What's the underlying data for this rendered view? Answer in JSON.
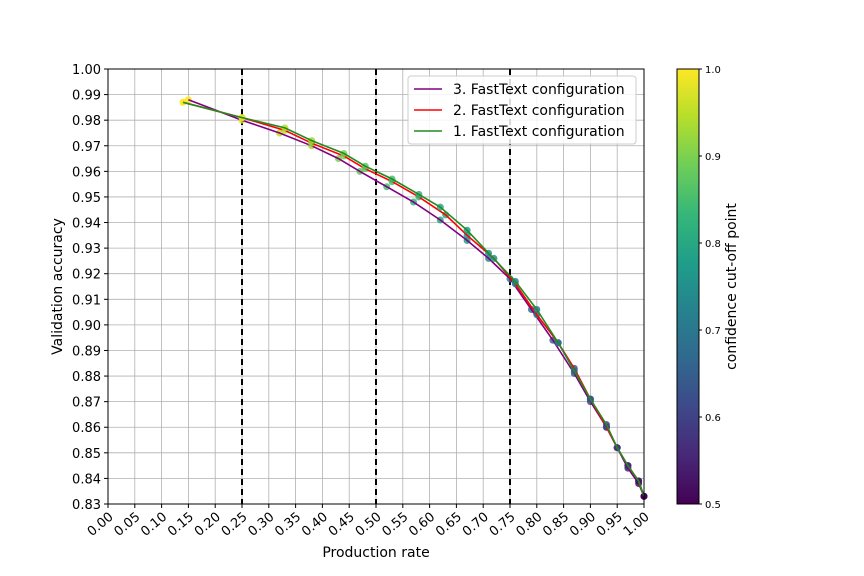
{
  "chart_data": {
    "type": "line",
    "xlabel": "Production rate",
    "ylabel": "Validation accuracy",
    "xlim": [
      0.0,
      1.0
    ],
    "ylim": [
      0.83,
      1.0
    ],
    "xticks": [
      "0.00",
      "0.05",
      "0.10",
      "0.15",
      "0.20",
      "0.25",
      "0.30",
      "0.35",
      "0.40",
      "0.45",
      "0.50",
      "0.55",
      "0.60",
      "0.65",
      "0.70",
      "0.75",
      "0.80",
      "0.85",
      "0.90",
      "0.95",
      "1.00"
    ],
    "yticks": [
      "0.83",
      "0.84",
      "0.85",
      "0.86",
      "0.87",
      "0.88",
      "0.89",
      "0.90",
      "0.91",
      "0.92",
      "0.93",
      "0.94",
      "0.95",
      "0.96",
      "0.97",
      "0.98",
      "0.99",
      "1.00"
    ],
    "grid": true,
    "legend_position": "top-right",
    "vertical_lines": [
      0.25,
      0.5,
      0.75
    ],
    "colorbar": {
      "label": "confidence cut-off point",
      "min": 0.5,
      "max": 1.0,
      "ticks": [
        "0.5",
        "0.6",
        "0.7",
        "0.8",
        "0.9",
        "1.0"
      ],
      "colormap": [
        "#440154",
        "#482878",
        "#3e4989",
        "#31688e",
        "#26828e",
        "#1f9e89",
        "#35b779",
        "#6ece58",
        "#b5de2b",
        "#fde725"
      ]
    },
    "series": [
      {
        "name": "3. FastText configuration",
        "color": "#800080",
        "x": [
          0.15,
          0.25,
          0.32,
          0.38,
          0.43,
          0.47,
          0.52,
          0.57,
          0.62,
          0.67,
          0.71,
          0.75,
          0.79,
          0.83,
          0.87,
          0.9,
          0.93,
          0.95,
          0.97,
          0.99,
          1.0
        ],
        "y": [
          0.988,
          0.98,
          0.975,
          0.97,
          0.965,
          0.96,
          0.954,
          0.948,
          0.941,
          0.933,
          0.926,
          0.918,
          0.906,
          0.894,
          0.881,
          0.87,
          0.86,
          0.852,
          0.844,
          0.838,
          0.833
        ]
      },
      {
        "name": "2. FastText configuration",
        "color": "#ff0000",
        "x": [
          0.14,
          0.25,
          0.33,
          0.38,
          0.44,
          0.48,
          0.53,
          0.58,
          0.63,
          0.67,
          0.72,
          0.76,
          0.8,
          0.84,
          0.87,
          0.9,
          0.93,
          0.95,
          0.97,
          0.99,
          1.0
        ],
        "y": [
          0.987,
          0.981,
          0.976,
          0.971,
          0.966,
          0.961,
          0.956,
          0.95,
          0.943,
          0.935,
          0.926,
          0.916,
          0.904,
          0.893,
          0.883,
          0.871,
          0.86,
          0.852,
          0.845,
          0.839,
          0.833
        ]
      },
      {
        "name": "1. FastText configuration",
        "color": "#228b22",
        "x": [
          0.14,
          0.25,
          0.33,
          0.38,
          0.44,
          0.48,
          0.53,
          0.58,
          0.62,
          0.67,
          0.71,
          0.76,
          0.8,
          0.84,
          0.87,
          0.9,
          0.93,
          0.95,
          0.97,
          0.99,
          1.0
        ],
        "y": [
          0.987,
          0.981,
          0.977,
          0.972,
          0.967,
          0.962,
          0.957,
          0.951,
          0.946,
          0.937,
          0.928,
          0.917,
          0.906,
          0.893,
          0.882,
          0.871,
          0.861,
          0.852,
          0.845,
          0.839,
          0.833
        ]
      }
    ]
  }
}
